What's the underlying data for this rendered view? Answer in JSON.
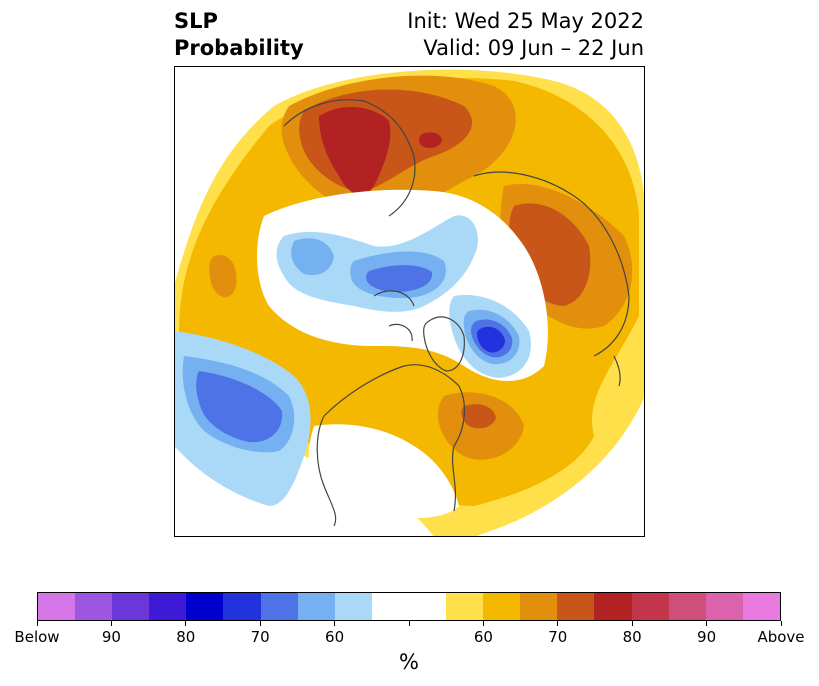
{
  "title": {
    "left_line1": "SLP",
    "left_line2": "Probability",
    "right_line1": "Init: Wed 25 May 2022",
    "right_line2": "Valid: 09 Jun – 22 Jun"
  },
  "colors": {
    "below": [
      "#d675e8",
      "#9c56e0",
      "#6b37d9",
      "#3f1ad6",
      "#0000cc",
      "#2233dd",
      "#4d73e6",
      "#75b0f0",
      "#aad9f7"
    ],
    "neutral": "#ffffff",
    "above": [
      "#ffe04b",
      "#f5b800",
      "#e18f0c",
      "#c85618",
      "#b22222",
      "#c2354a",
      "#cf4e7c",
      "#db62ad",
      "#e87ae0"
    ],
    "coast": "#444444"
  },
  "colorbar": {
    "labels": [
      "Below",
      "90",
      "80",
      "70",
      "60",
      "",
      "60",
      "70",
      "80",
      "90",
      "Above"
    ],
    "unit": "%"
  }
}
